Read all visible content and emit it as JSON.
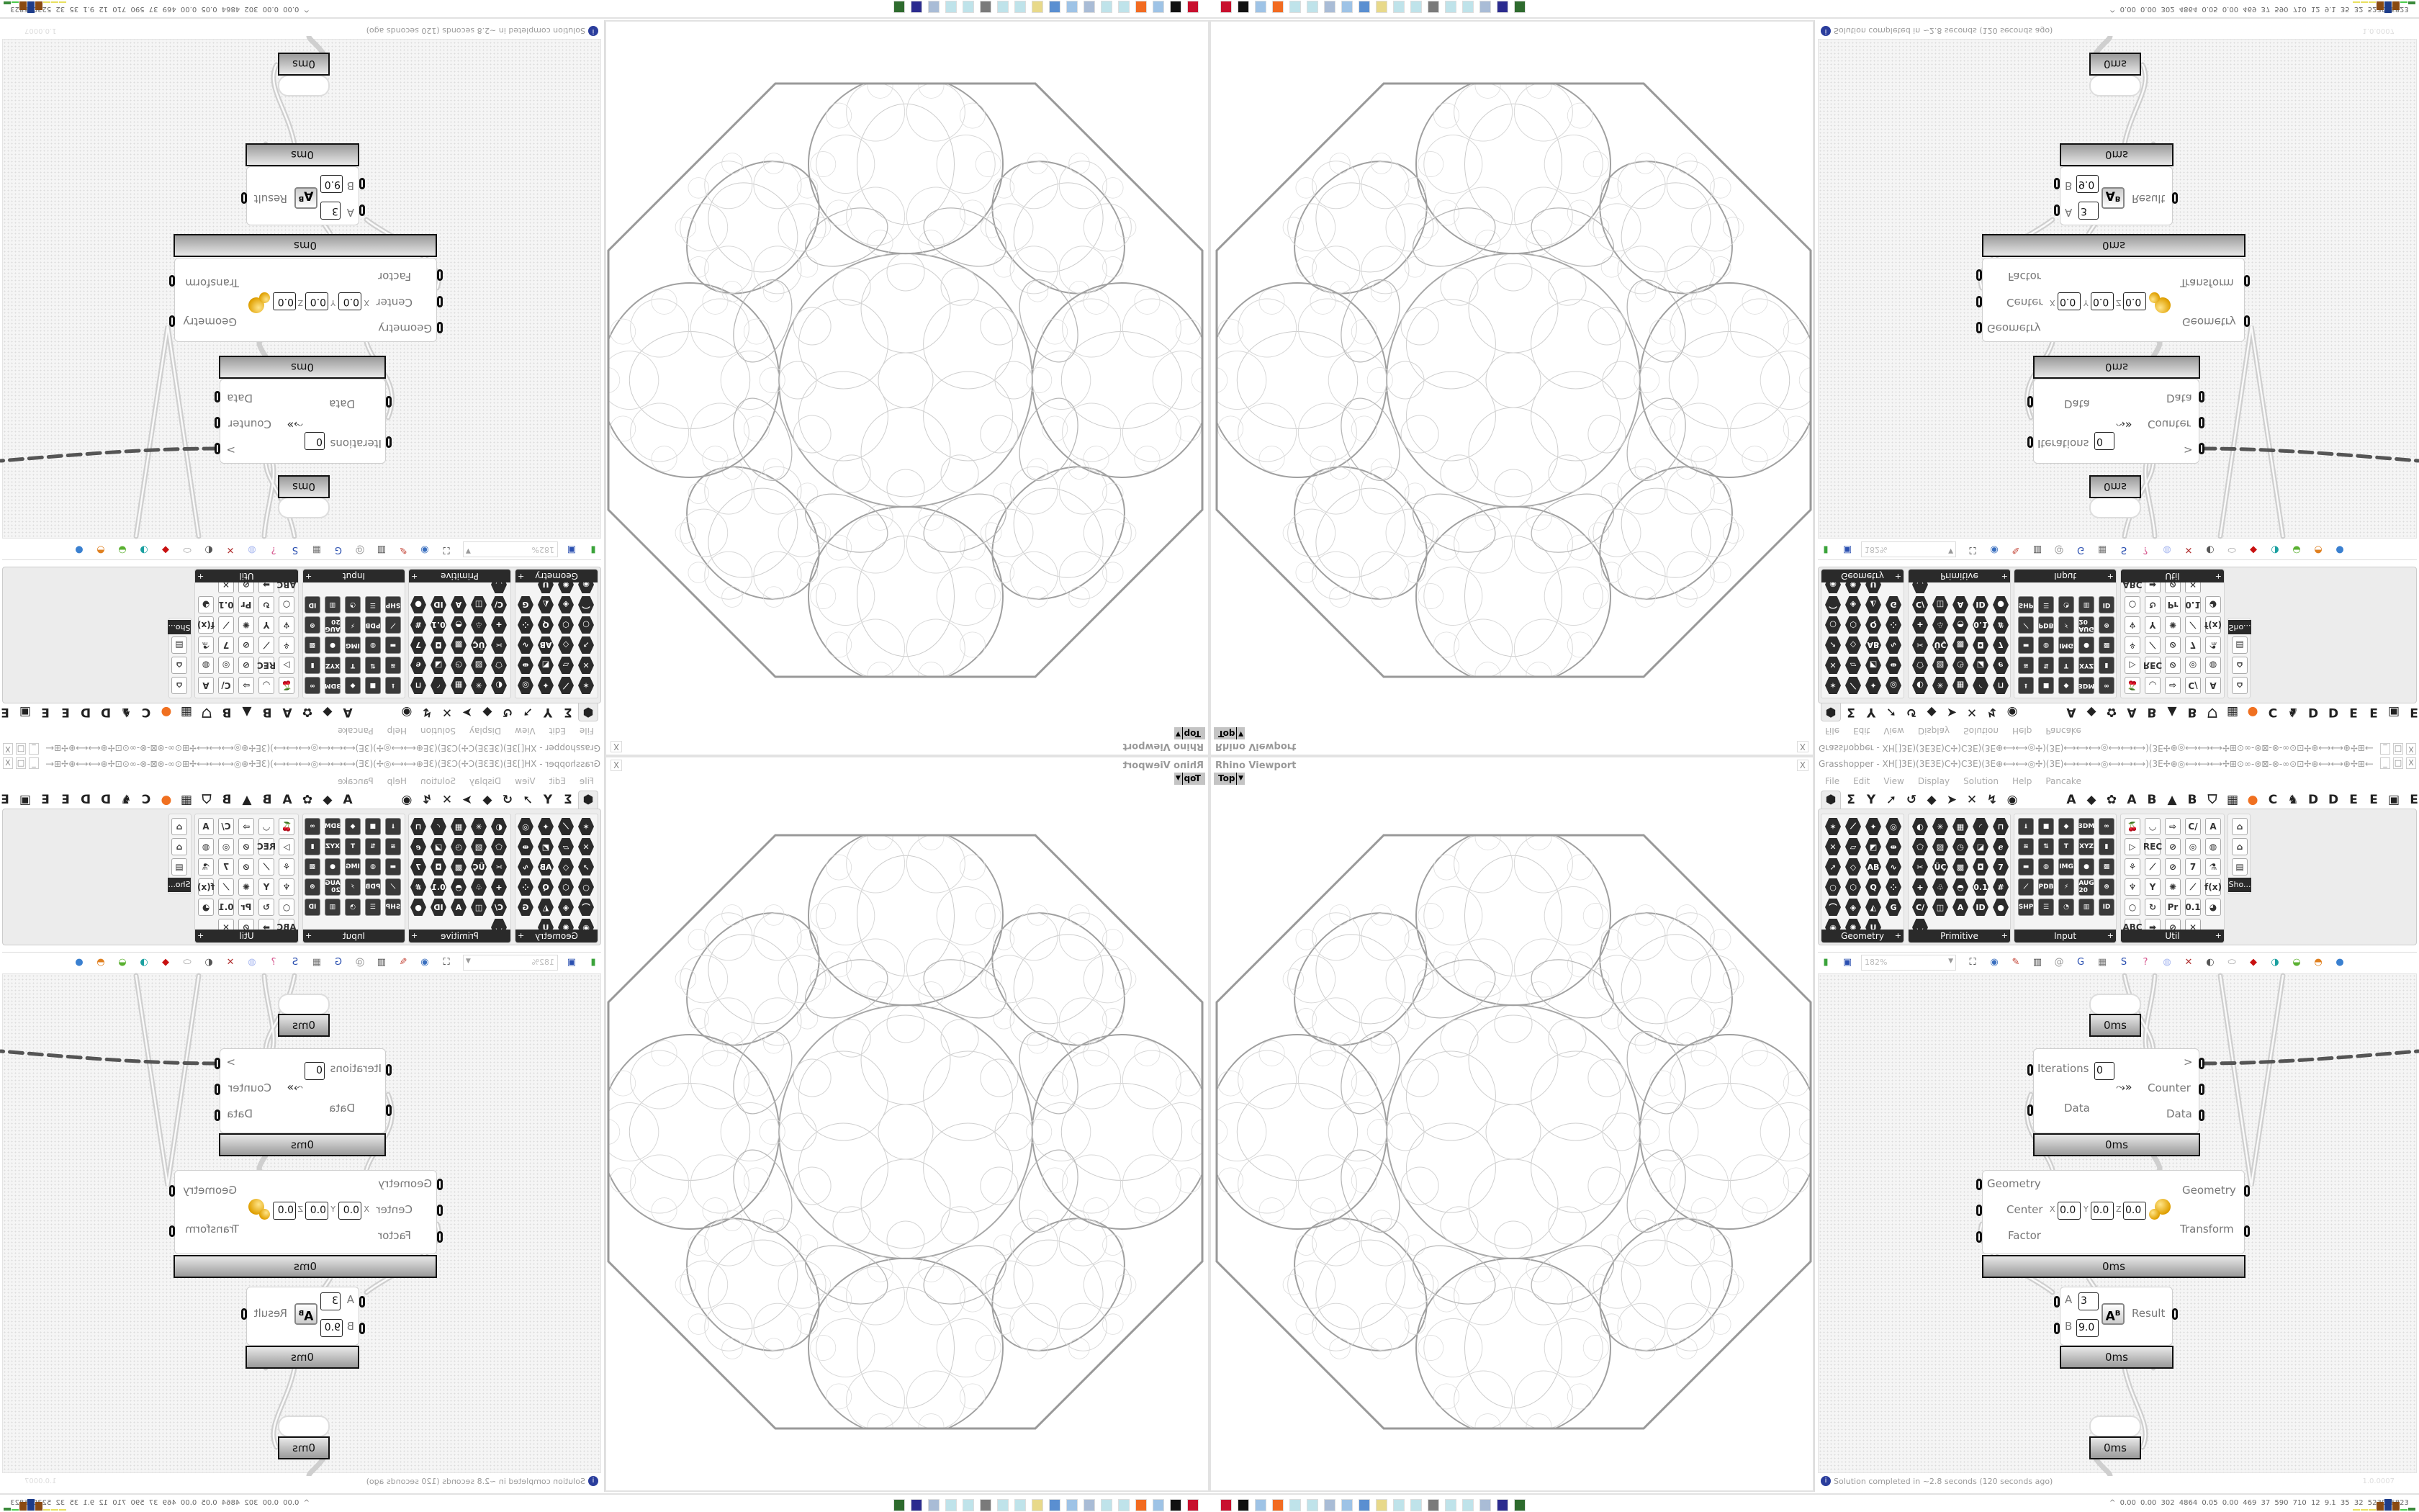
{
  "viewport": {
    "title": "Rhino Viewport",
    "view": "Top",
    "close": "X"
  },
  "grasshopper": {
    "title": "Grasshopper - XH[]3E)(3E3E)C✢)C3E)(3E⊕⟷⟷◎✢)(3E)⟷⟷⟷◎⟷⟷⟷)(3E✢⊕◎⟷⟷⟷✢⊞⊙∞-⊛⊠-⊗-∞⊙⊡✢⊕⟷⟷⊕✢⊞⟷⟷3E)[3E⟷⟷⊞✢⊙⟷⟷⊕✢⊞⊙∞-⊛⊠-⊗-∞⊙⊡✢⊕⟷⟷◎✢)(3E)⟷⟷◎...",
    "window_buttons": [
      "_",
      "□",
      "X"
    ],
    "menu": [
      "File",
      "Edit",
      "View",
      "Display",
      "Solution",
      "Help",
      "Pancake"
    ],
    "tabs_left": [
      "⬢",
      "Σ",
      "Y",
      "➚",
      "↺",
      "◆",
      "➤",
      "✕",
      "↯",
      "◉"
    ],
    "tabs_right": [
      "A",
      "◆",
      "✿",
      "A",
      "B",
      "▲",
      "B",
      "⛉",
      "▦",
      "●",
      "C",
      "♞",
      "D",
      "D",
      "E",
      "E",
      "▣",
      "E"
    ],
    "panels": [
      {
        "label": "Geometry",
        "style": "hex",
        "cols": 4,
        "icons": [
          "✶",
          "⟋",
          "✦",
          "◎",
          "✕",
          "▱",
          "◩",
          "⇹",
          "➚",
          "◇",
          "AB",
          "∿",
          "○",
          "⬡",
          "Q",
          "⁘",
          "⌒",
          "◈",
          "◭",
          "G",
          "◉",
          "✺",
          "U"
        ]
      },
      {
        "label": "Primitive",
        "style": "hex",
        "cols": 5,
        "icons": [
          "◐",
          "✳",
          "▦",
          "◜",
          "⊓",
          "⬠",
          "▨",
          "◷",
          "◪",
          "ℯ",
          "✂",
          "ÜÇ",
          "▩",
          "◘",
          "7",
          "+",
          "♧",
          "◓",
          "0.1",
          "#",
          "C/",
          "◫",
          "A",
          "ID",
          "●",
          "◡"
        ]
      },
      {
        "label": "Input",
        "style": "sq",
        "cols": 5,
        "icons": [
          "⭳",
          "■",
          "◆",
          "3DM",
          "∞",
          "≋",
          "⇅",
          "T",
          "XYZ",
          "▮",
          "▬",
          "◍",
          "IMG",
          "●",
          "▩",
          "⟋",
          "PDB",
          "⚡",
          "AUG 20",
          "⊛",
          "SHP",
          "☰",
          "◔",
          "▥",
          "ID"
        ]
      },
      {
        "label": "Util",
        "style": "ut",
        "cols": 5,
        "icons": [
          "🍒",
          "◡",
          "⇨",
          "C/",
          "A",
          "▷",
          "REC",
          "⊘",
          "◎",
          "◍",
          "⚘",
          "⟋",
          "⊘",
          "7",
          "⚗",
          "♆",
          "Y",
          "✺",
          "⟋",
          "f(x)",
          "○",
          "↻",
          "Pr",
          "0.1",
          "◕",
          "ABC",
          "➡",
          "⊘",
          "✕"
        ]
      },
      {
        "label": "Sho...",
        "style": "ut",
        "cols": 1,
        "icons": [
          "⌂",
          "⌂",
          "▤"
        ]
      }
    ],
    "toolbar": {
      "zoom": "182%",
      "icons": [
        "new-file-icon",
        "save-icon",
        "zoom-extents-icon",
        "preview-eye-icon",
        "sketch-icon",
        "bake-icon",
        "cluster-icon",
        "gha-icon",
        "canvas-snapshot-icon",
        "search-icon",
        "package-icon",
        "bulb-icon",
        "wires-icon",
        "shaded-icon",
        "wireframe-icon",
        "red-solid-icon",
        "teal-icon",
        "green-icon",
        "half-sphere-icon",
        "blue-sphere-icon"
      ]
    },
    "nodes": {
      "param_top": {
        "time": "0ms"
      },
      "loop": {
        "iterations_label": "Iterations",
        "iterations_value": "0",
        "data_in_label": "Data",
        "next_label": ">",
        "counter_label": "Counter",
        "data_out_label": "Data",
        "time": "0ms"
      },
      "scale": {
        "geometry_in_label": "Geometry",
        "center_label": "Center",
        "x_label": "X",
        "x": "0.0",
        "y_label": "Y",
        "y": "0.0",
        "z_label": "Z",
        "z": "0.0",
        "factor_label": "Factor",
        "geometry_out_label": "Geometry",
        "transform_label": "Transform",
        "time": "0ms"
      },
      "power": {
        "a_label": "A",
        "a": "3",
        "b_label": "B",
        "b": "9.0",
        "icon": "A^B",
        "result_label": "Result",
        "time": "0ms"
      },
      "param_bottom": {
        "time": "0ms"
      }
    },
    "status": "Solution completed in ~2.8 seconds (120 seconds ago)",
    "version": "1.0.0007"
  },
  "taskbar": {
    "apps": [
      {
        "name": "app-red",
        "color": "#c8102e"
      },
      {
        "name": "inkscape",
        "color": "#111111"
      },
      {
        "name": "calculator",
        "color": "#9ec3e6"
      },
      {
        "name": "firefox",
        "color": "#f26b21"
      },
      {
        "name": "notepad",
        "color": "#bfe3ea"
      },
      {
        "name": "notepad",
        "color": "#bfe3ea"
      },
      {
        "name": "documents",
        "color": "#a9bcd6"
      },
      {
        "name": "calculator",
        "color": "#9ec3e6"
      },
      {
        "name": "control-panel",
        "color": "#5a8fd1"
      },
      {
        "name": "folder",
        "color": "#e8d98a"
      },
      {
        "name": "notepad",
        "color": "#bfe3ea"
      },
      {
        "name": "notepad",
        "color": "#bfe3ea"
      },
      {
        "name": "monitor",
        "color": "#7a7a7a"
      },
      {
        "name": "notepad",
        "color": "#bfe3ea"
      },
      {
        "name": "notepad",
        "color": "#bfe3ea"
      },
      {
        "name": "documents",
        "color": "#a9bcd6"
      },
      {
        "name": "floppy",
        "color": "#2b2b8f"
      },
      {
        "name": "green-app",
        "color": "#2e6b2e"
      }
    ],
    "stats": "0.00 0.00 302 4864 0.05 0.00 469 37 590 710 12 9.1 35 32 5230 6823",
    "tray_arrow": "^",
    "perf_colors": [
      "#e8e060",
      "#e8e060",
      "#e8e060",
      "#8a4a12",
      "#1d3c8a",
      "#8a4a12",
      "#4ccc4c",
      "#3b8a3b"
    ]
  }
}
